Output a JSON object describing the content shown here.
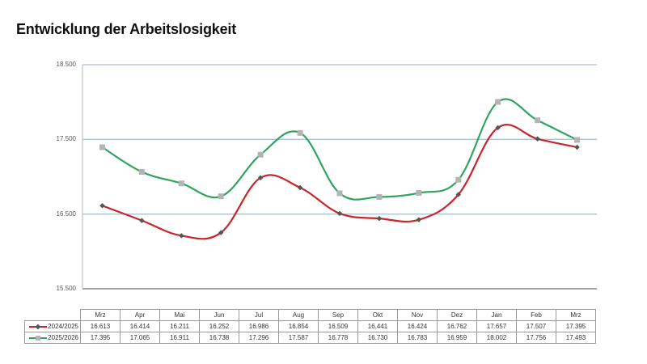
{
  "title": "Entwicklung der Arbeitslosigkeit",
  "y_axis": {
    "labels": [
      "18.500",
      "17.500",
      "16.500",
      "15.500"
    ]
  },
  "table": {
    "months": [
      "Mrz",
      "Apr",
      "Mai",
      "Jun",
      "Jul",
      "Aug",
      "Sep",
      "Okt",
      "Nov",
      "Dez",
      "Jan",
      "Feb",
      "Mrz"
    ],
    "rows": [
      {
        "label": "2024/2025",
        "values": [
          "16.613",
          "16.414",
          "16.211",
          "16.252",
          "16.986",
          "16.854",
          "16.509",
          "16.441",
          "16.424",
          "16.762",
          "17.657",
          "17.507",
          "17.395"
        ]
      },
      {
        "label": "2025/2026",
        "values": [
          "17.395",
          "17.065",
          "16.911",
          "16.738",
          "17.296",
          "17.587",
          "16.778",
          "16.730",
          "16.783",
          "16.959",
          "18.002",
          "17.756",
          "17.493"
        ]
      }
    ]
  },
  "colors": {
    "series_2024": "#c8262b",
    "series_2025": "#2ea55f",
    "marker_2024": "#555555",
    "marker_2025": "#b4b4b4",
    "grid": "#a9c1d3",
    "axis": "#888888"
  },
  "chart_data": {
    "type": "line",
    "title": "Entwicklung der Arbeitslosigkeit",
    "xlabel": "",
    "ylabel": "",
    "categories": [
      "Mrz",
      "Apr",
      "Mai",
      "Jun",
      "Jul",
      "Aug",
      "Sep",
      "Okt",
      "Nov",
      "Dez",
      "Jan",
      "Feb",
      "Mrz"
    ],
    "series": [
      {
        "name": "2024/2025",
        "color": "#c8262b",
        "marker": "diamond",
        "values": [
          16613,
          16414,
          16211,
          16252,
          16986,
          16854,
          16509,
          16441,
          16424,
          16762,
          17657,
          17507,
          17395
        ]
      },
      {
        "name": "2025/2026",
        "color": "#2ea55f",
        "marker": "square",
        "values": [
          17395,
          17065,
          16911,
          16738,
          17296,
          17587,
          16778,
          16730,
          16783,
          16959,
          18002,
          17756,
          17493
        ]
      }
    ],
    "ylim": [
      15500,
      18500
    ],
    "yticks": [
      15500,
      16500,
      17500,
      18500
    ],
    "grid": true,
    "smoothed": true,
    "legend_position": "data-table"
  }
}
